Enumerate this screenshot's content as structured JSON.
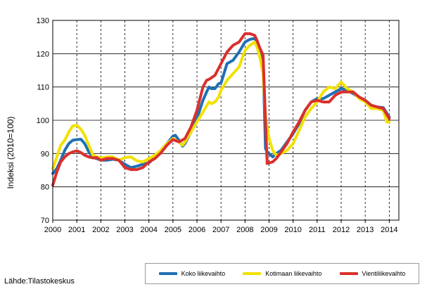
{
  "chart_data": {
    "type": "line",
    "title": "",
    "ylabel": "Indeksi (2010=100)",
    "xlabel": "",
    "xlim": [
      2000,
      2014.4
    ],
    "ylim": [
      70,
      130
    ],
    "yticks": [
      70,
      80,
      90,
      100,
      110,
      120,
      130
    ],
    "xticks": [
      "2000",
      "2001",
      "2002",
      "2003",
      "2004",
      "2005",
      "2006",
      "2007",
      "2008",
      "2009",
      "2010",
      "2011",
      "2012",
      "2013",
      "2014"
    ],
    "grid": "vertical dashed at years, horizontal solid",
    "legend_position": "bottom-right",
    "series": [
      {
        "name": "Koko liikevaihto",
        "color": "#1f6fb5",
        "x": [
          2000.0,
          2000.17,
          2000.33,
          2000.5,
          2000.67,
          2000.83,
          2001.0,
          2001.17,
          2001.33,
          2001.5,
          2001.67,
          2001.83,
          2002.0,
          2002.25,
          2002.5,
          2002.75,
          2003.0,
          2003.25,
          2003.5,
          2003.75,
          2004.0,
          2004.25,
          2004.5,
          2004.75,
          2005.0,
          2005.1,
          2005.25,
          2005.4,
          2005.5,
          2005.75,
          2006.0,
          2006.25,
          2006.4,
          2006.5,
          2006.6,
          2006.75,
          2006.9,
          2007.0,
          2007.25,
          2007.5,
          2007.75,
          2008.0,
          2008.2,
          2008.4,
          2008.5,
          2008.6,
          2008.75,
          2008.85,
          2008.92,
          2009.0,
          2009.15,
          2009.3,
          2009.5,
          2009.75,
          2010.0,
          2010.25,
          2010.5,
          2010.75,
          2011.0,
          2011.25,
          2011.5,
          2011.75,
          2012.0,
          2012.25,
          2012.5,
          2012.75,
          2013.0,
          2013.25,
          2013.5,
          2013.75,
          2014.0
        ],
        "values": [
          84,
          85.5,
          88,
          91,
          93,
          94,
          94.2,
          94.3,
          93,
          90.5,
          88.8,
          88.5,
          88,
          88,
          88.3,
          88,
          86.8,
          85.8,
          86.2,
          86.8,
          87.2,
          88.8,
          91,
          93,
          95.2,
          95.5,
          94,
          92.2,
          93,
          96.5,
          100.5,
          106,
          108.5,
          110,
          109.5,
          109.5,
          111,
          111.2,
          117,
          118,
          120.5,
          123.5,
          124.3,
          124.6,
          123.5,
          121.5,
          117.5,
          91.5,
          90.5,
          90,
          89,
          90,
          91,
          93.5,
          96,
          99,
          103,
          105.5,
          106.5,
          106.5,
          107.5,
          108.5,
          109.5,
          109,
          108,
          106.8,
          106,
          104.5,
          104,
          103.8,
          101
        ]
      },
      {
        "name": "Kotimaan liikevaihto",
        "color": "#f2e100",
        "x": [
          2000.0,
          2000.17,
          2000.33,
          2000.5,
          2000.67,
          2000.83,
          2001.0,
          2001.17,
          2001.33,
          2001.5,
          2001.67,
          2001.83,
          2002.0,
          2002.25,
          2002.5,
          2002.75,
          2003.0,
          2003.25,
          2003.5,
          2003.75,
          2004.0,
          2004.25,
          2004.5,
          2004.75,
          2005.0,
          2005.25,
          2005.4,
          2005.5,
          2005.75,
          2006.0,
          2006.25,
          2006.5,
          2006.6,
          2006.75,
          2006.9,
          2007.0,
          2007.25,
          2007.5,
          2007.75,
          2008.0,
          2008.2,
          2008.4,
          2008.5,
          2008.6,
          2008.75,
          2008.85,
          2009.0,
          2009.15,
          2009.3,
          2009.5,
          2009.75,
          2010.0,
          2010.25,
          2010.5,
          2010.75,
          2011.0,
          2011.25,
          2011.5,
          2011.75,
          2012.0,
          2012.25,
          2012.5,
          2012.75,
          2013.0,
          2013.25,
          2013.5,
          2013.75,
          2013.9,
          2014.0
        ],
        "values": [
          85.5,
          89,
          92.5,
          94,
          96.5,
          98.3,
          98.5,
          97.3,
          95.5,
          92.5,
          89.5,
          89,
          88.7,
          89,
          89,
          88,
          88.8,
          89,
          87.8,
          87.5,
          88.5,
          89.5,
          91,
          93,
          94.5,
          93.5,
          92.5,
          93.5,
          96.5,
          99.5,
          102.5,
          105.5,
          105,
          105.5,
          107,
          109,
          112,
          114,
          116,
          121,
          122.5,
          123.5,
          122,
          119.5,
          114,
          101,
          94.5,
          91,
          89.5,
          90,
          91,
          93,
          97,
          101,
          103.5,
          105.5,
          108.5,
          110,
          109.5,
          111.5,
          109.5,
          108.5,
          106.5,
          105.5,
          103.5,
          103.5,
          103,
          99.5,
          99.5
        ]
      },
      {
        "name": "Vientiliikevaihto",
        "color": "#d9302c",
        "x": [
          2000.0,
          2000.17,
          2000.33,
          2000.5,
          2000.67,
          2000.83,
          2001.0,
          2001.17,
          2001.33,
          2001.5,
          2001.67,
          2001.83,
          2002.0,
          2002.25,
          2002.5,
          2002.75,
          2003.0,
          2003.25,
          2003.5,
          2003.75,
          2004.0,
          2004.25,
          2004.5,
          2004.75,
          2005.0,
          2005.25,
          2005.5,
          2005.75,
          2006.0,
          2006.25,
          2006.4,
          2006.5,
          2006.75,
          2007.0,
          2007.25,
          2007.5,
          2007.75,
          2008.0,
          2008.2,
          2008.4,
          2008.5,
          2008.6,
          2008.75,
          2008.85,
          2008.92,
          2009.0,
          2009.15,
          2009.3,
          2009.5,
          2009.75,
          2010.0,
          2010.25,
          2010.5,
          2010.75,
          2011.0,
          2011.25,
          2011.5,
          2011.75,
          2012.0,
          2012.25,
          2012.5,
          2012.75,
          2013.0,
          2013.25,
          2013.5,
          2013.75,
          2014.0
        ],
        "values": [
          80.5,
          84.5,
          87.5,
          89,
          90,
          90.5,
          90.8,
          90.3,
          89.5,
          89,
          88.7,
          88.8,
          88,
          88.5,
          88.5,
          88,
          85.8,
          85.2,
          85.2,
          85.8,
          87.5,
          88.5,
          90.2,
          92.5,
          94.2,
          93.5,
          94.5,
          98,
          103,
          110,
          112,
          112.3,
          113.5,
          117,
          120.5,
          122.5,
          123.5,
          126,
          126,
          125.5,
          124,
          122,
          119.5,
          100,
          87,
          87.2,
          87.5,
          88.5,
          90.5,
          93,
          96.5,
          99.5,
          103,
          105.5,
          106,
          105.5,
          105.5,
          107.5,
          108.5,
          108.5,
          108.5,
          107,
          106,
          104.5,
          104,
          103.5,
          100.5
        ]
      }
    ]
  },
  "source": "Lähde:Tilastokeskus"
}
